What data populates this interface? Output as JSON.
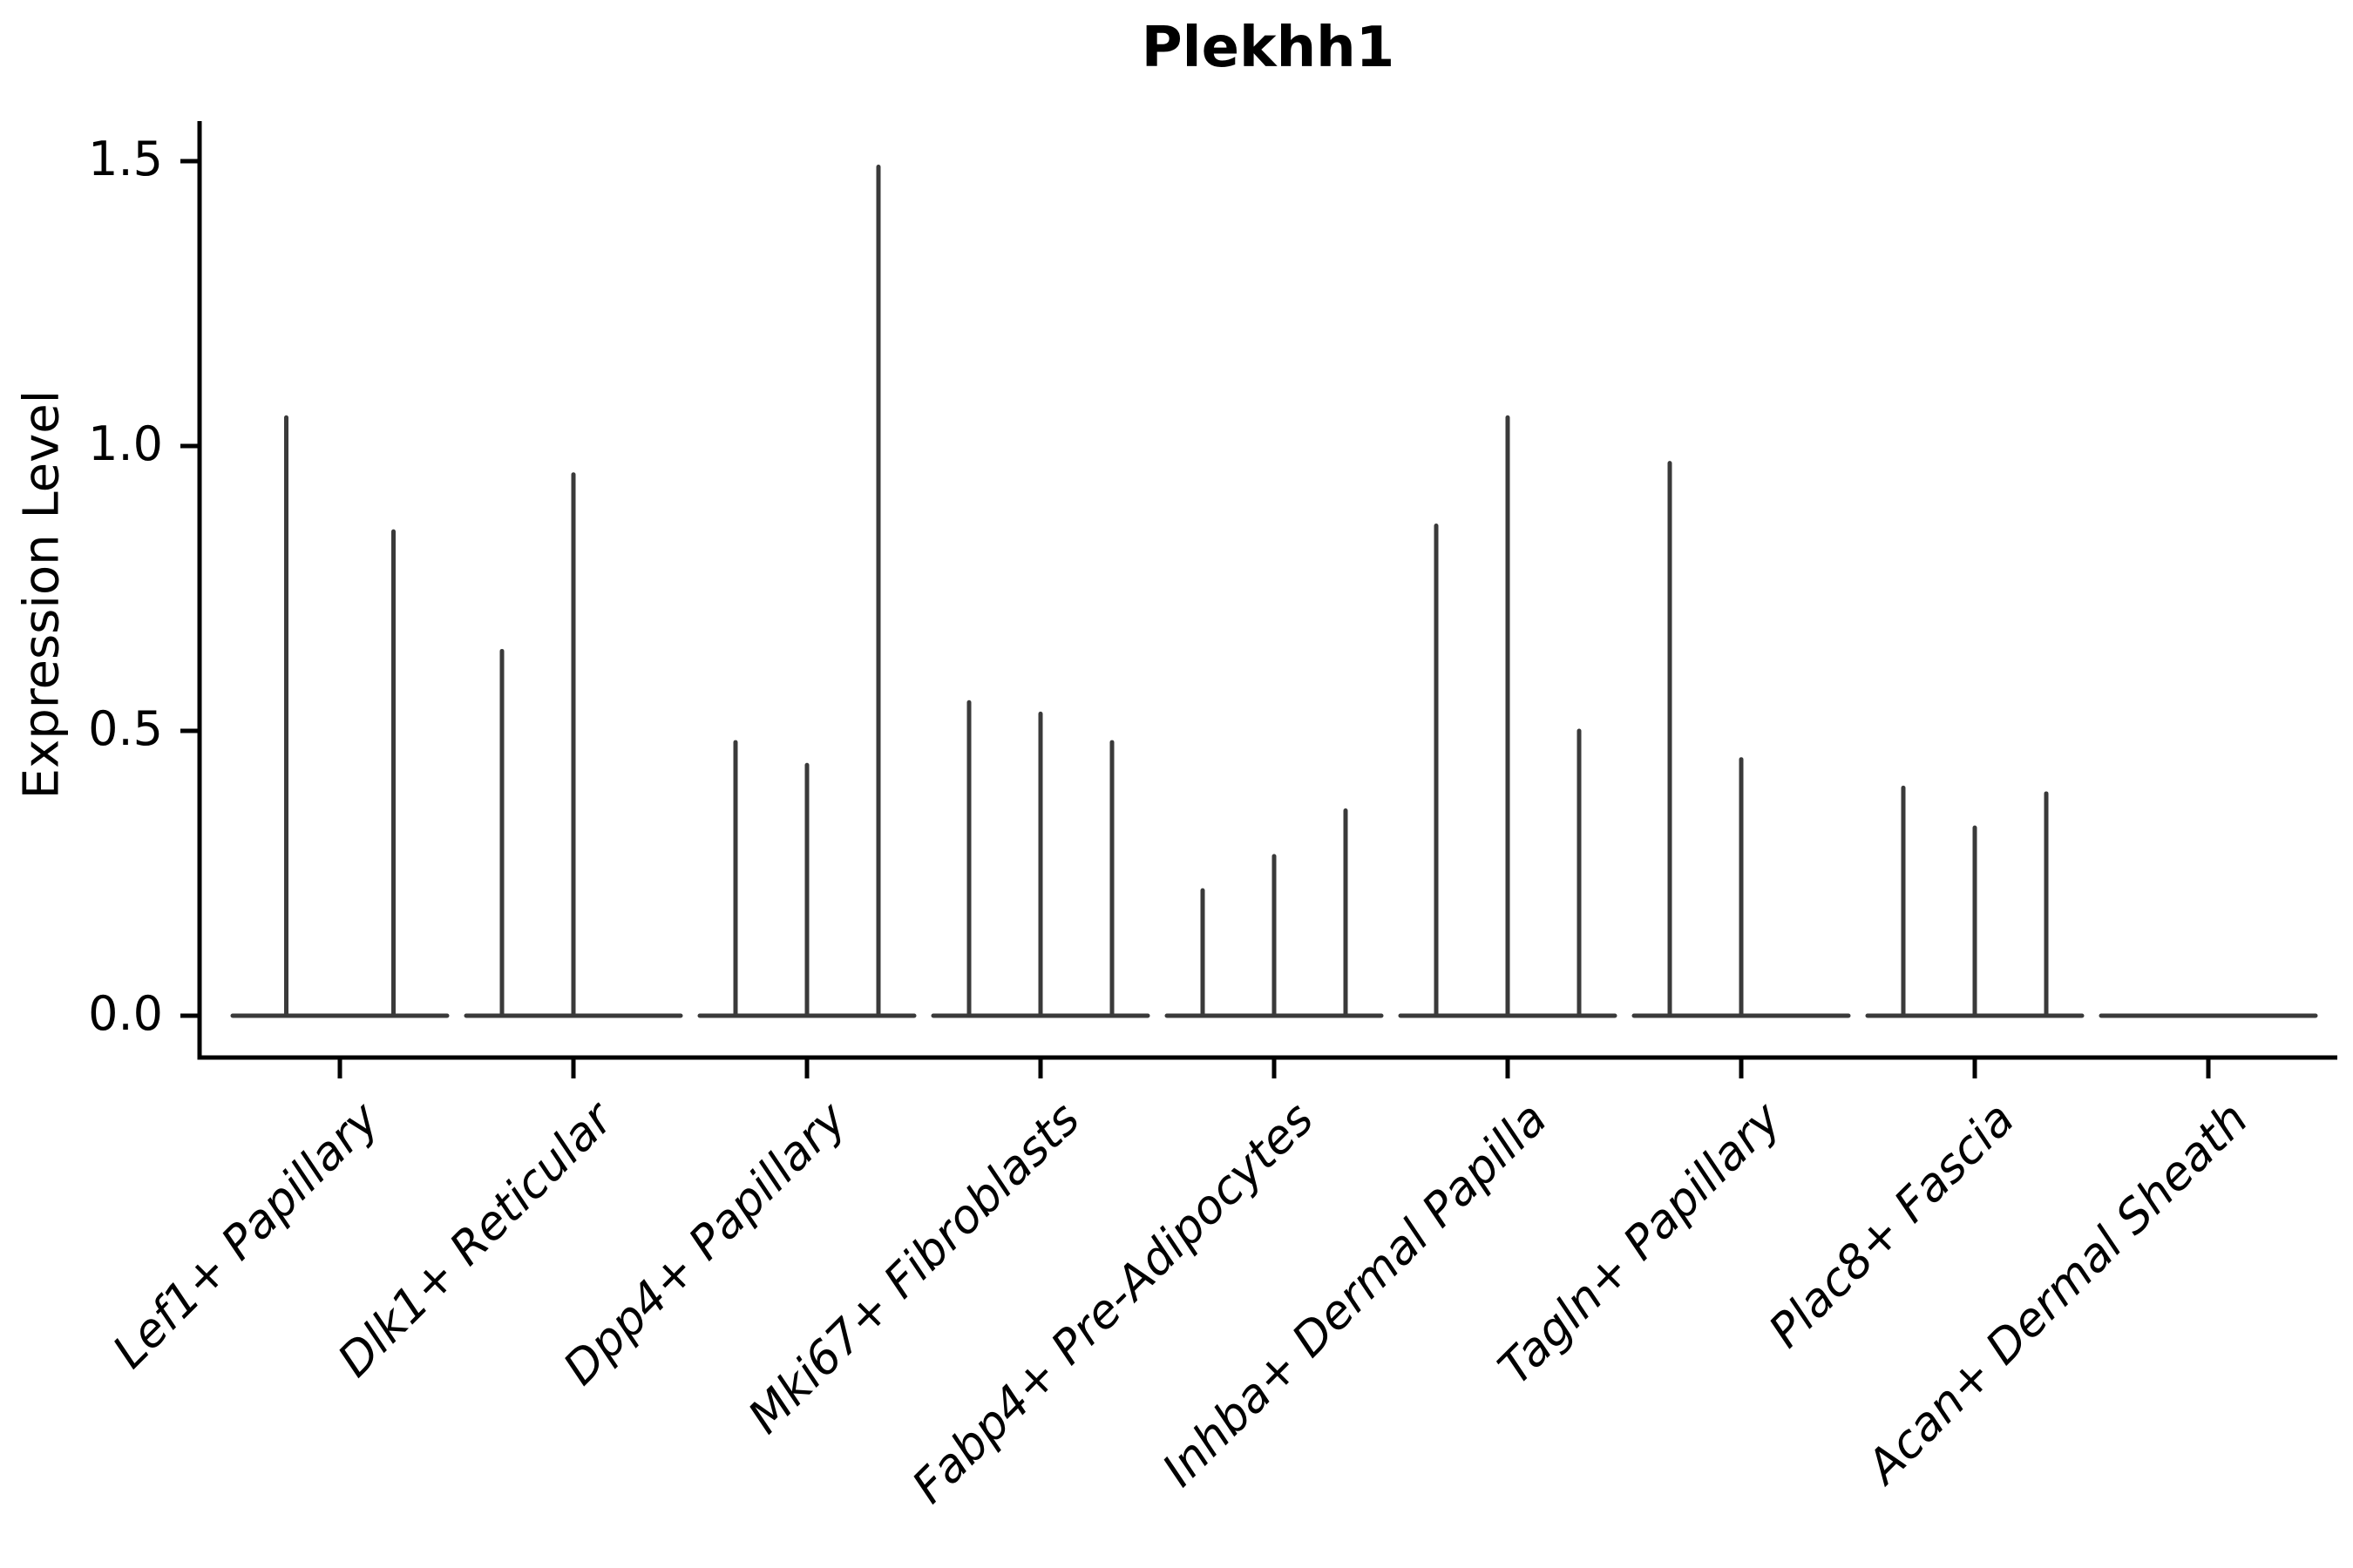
{
  "figure": {
    "background": "#ffffff"
  },
  "chart_data": {
    "type": "violin",
    "title": "Plekhh1",
    "ylabel": "Expression Level",
    "xlabel": "",
    "yticks": [
      0,
      0.5,
      1.0,
      1.5
    ],
    "ytick_labels": [
      "0.0",
      "0.5",
      "1.0",
      "1.5"
    ],
    "ylim": [
      -0.073,
      1.571
    ],
    "grid": false,
    "legend_position": "none",
    "violin_color": "#3a3a3a",
    "axis_color": "#000000",
    "text_color": "#000000",
    "categories": [
      "Lef1+ Papillary",
      "Dlk1+ Reticular",
      "Dpp4+ Papillary",
      "Mki67+ Fibroblasts",
      "Fabp4+ Pre-Adipocytes",
      "Inhba+ Dermal Papilla",
      "Tagln+ Papillary",
      "Plac8+ Fascia",
      "Acan+ Dermal Sheath"
    ],
    "groups": [
      {
        "category": "Lef1+ Papillary",
        "n_slots": 2,
        "spikes": [
          {
            "slot": 0,
            "peak": 1.05
          },
          {
            "slot": 1,
            "peak": 0.85
          }
        ]
      },
      {
        "category": "Dlk1+ Reticular",
        "n_slots": 3,
        "spikes": [
          {
            "slot": 0,
            "peak": 0.64
          },
          {
            "slot": 1,
            "peak": 0.95
          }
        ]
      },
      {
        "category": "Dpp4+ Papillary",
        "n_slots": 3,
        "spikes": [
          {
            "slot": 0,
            "peak": 0.48
          },
          {
            "slot": 1,
            "peak": 0.44
          },
          {
            "slot": 2,
            "peak": 1.49
          }
        ]
      },
      {
        "category": "Mki67+ Fibroblasts",
        "n_slots": 3,
        "spikes": [
          {
            "slot": 0,
            "peak": 0.55
          },
          {
            "slot": 1,
            "peak": 0.53
          },
          {
            "slot": 2,
            "peak": 0.48
          }
        ]
      },
      {
        "category": "Fabp4+ Pre-Adipocytes",
        "n_slots": 3,
        "spikes": [
          {
            "slot": 0,
            "peak": 0.22
          },
          {
            "slot": 1,
            "peak": 0.28
          },
          {
            "slot": 2,
            "peak": 0.36
          }
        ]
      },
      {
        "category": "Inhba+ Dermal Papilla",
        "n_slots": 3,
        "spikes": [
          {
            "slot": 0,
            "peak": 0.86
          },
          {
            "slot": 1,
            "peak": 1.05
          },
          {
            "slot": 2,
            "peak": 0.5
          }
        ]
      },
      {
        "category": "Tagln+ Papillary",
        "n_slots": 3,
        "spikes": [
          {
            "slot": 0,
            "peak": 0.97
          },
          {
            "slot": 1,
            "peak": 0.45
          }
        ]
      },
      {
        "category": "Plac8+ Fascia",
        "n_slots": 3,
        "spikes": [
          {
            "slot": 0,
            "peak": 0.4
          },
          {
            "slot": 1,
            "peak": 0.33
          },
          {
            "slot": 2,
            "peak": 0.39
          }
        ]
      },
      {
        "category": "Acan+ Dermal Sheath",
        "n_slots": 3,
        "spikes": []
      }
    ]
  }
}
